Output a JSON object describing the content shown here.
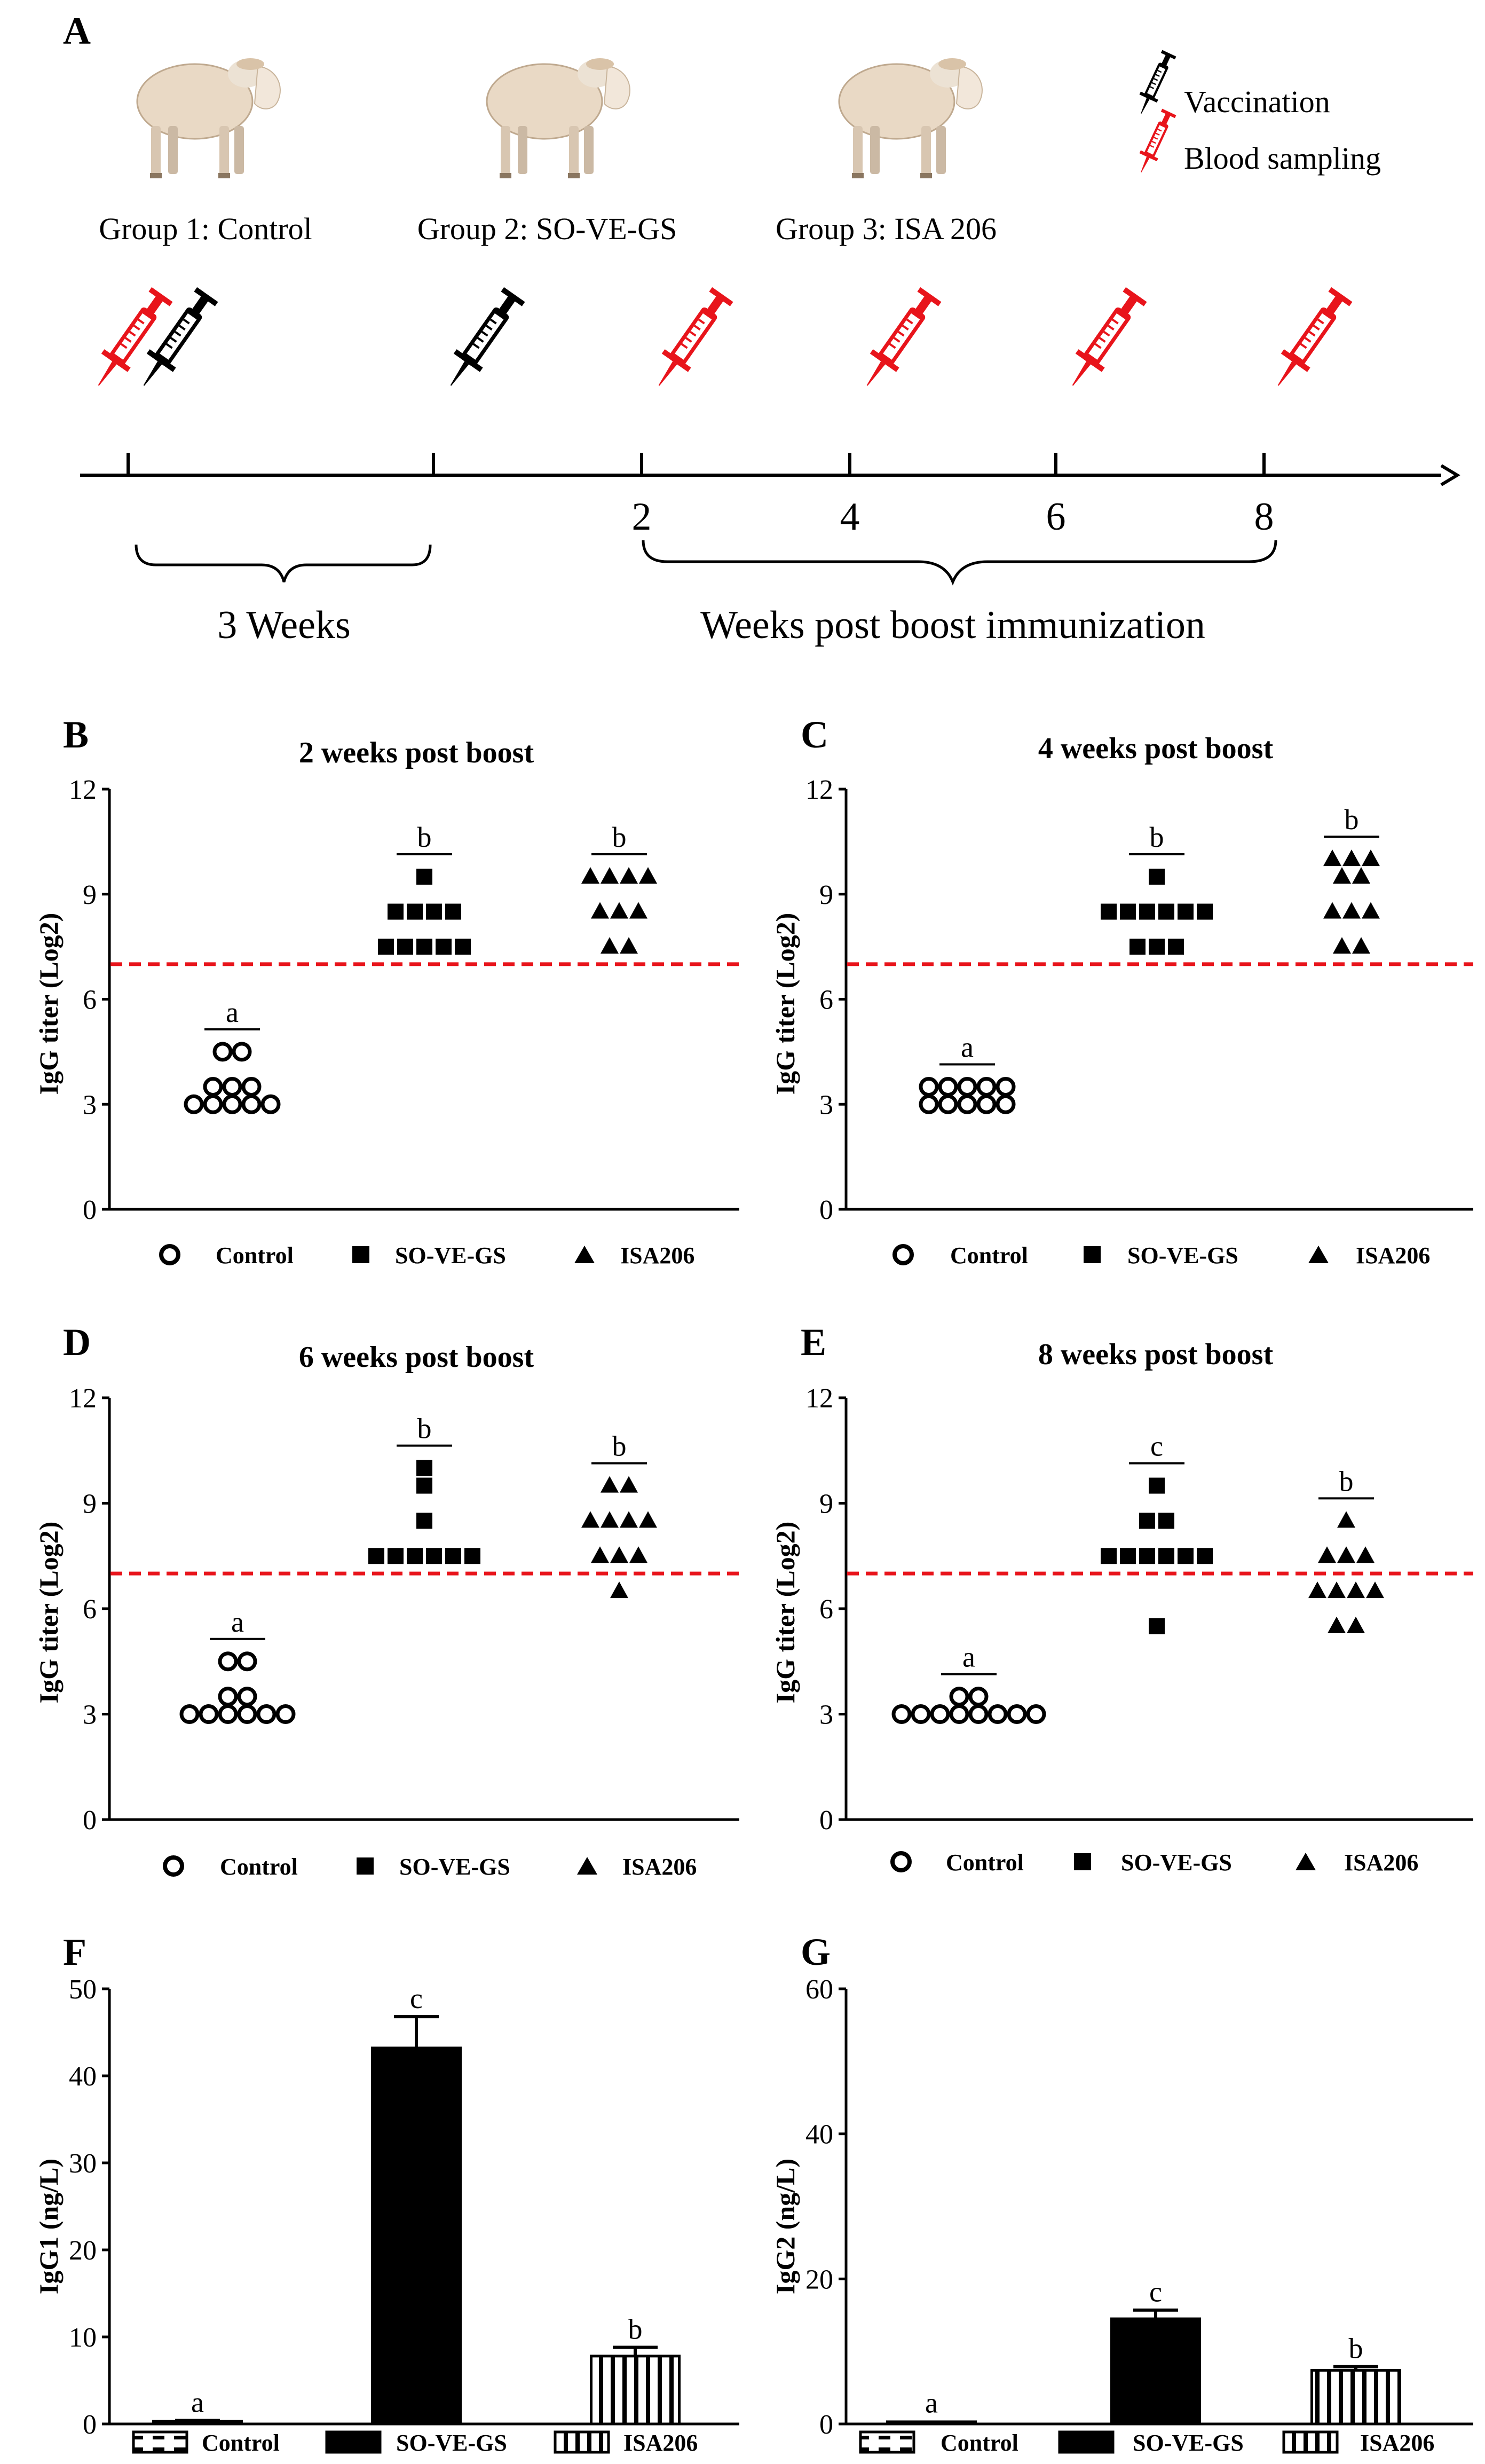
{
  "figure": {
    "panelA": {
      "label": "A",
      "groups": [
        "Group 1: Control",
        "Group 2: SO-VE-GS",
        "Group 3: ISA 206"
      ],
      "legend": {
        "vaccination": "Vaccination",
        "blood_sampling": "Blood sampling"
      },
      "timeline_ticks": [
        "2",
        "4",
        "6",
        "8"
      ],
      "period1": "3 Weeks",
      "period2": "Weeks post boost immunization",
      "colors": {
        "vaccination": "#000000",
        "blood_sampling": "#e8141b",
        "sheep": "#e9d9c5"
      }
    },
    "threshold_color": "#e8141b"
  },
  "chart_data": [
    {
      "panel": "B",
      "type": "scatter",
      "title": "2 weeks post boost",
      "ylabel": "IgG titer (Log2)",
      "ylim": [
        0,
        12
      ],
      "yticks": [
        "0",
        "3",
        "6",
        "9",
        "12"
      ],
      "threshold": 7,
      "legend": [
        "Control",
        "SO-VE-GS",
        "ISA206"
      ],
      "series": [
        {
          "name": "Control",
          "marker": "circle",
          "letter": "a",
          "rows": [
            [
              3,
              5
            ],
            [
              3.5,
              3
            ],
            [
              4.5,
              2
            ]
          ]
        },
        {
          "name": "SO-VE-GS",
          "marker": "square",
          "letter": "b",
          "rows": [
            [
              7.5,
              5
            ],
            [
              8.5,
              4
            ],
            [
              9.5,
              1
            ]
          ]
        },
        {
          "name": "ISA206",
          "marker": "triangle",
          "letter": "b",
          "rows": [
            [
              7.5,
              2
            ],
            [
              8.5,
              3
            ],
            [
              9.5,
              4
            ]
          ]
        }
      ]
    },
    {
      "panel": "C",
      "type": "scatter",
      "title": "4 weeks post boost",
      "ylabel": "IgG titer (Log2)",
      "ylim": [
        0,
        12
      ],
      "yticks": [
        "0",
        "3",
        "6",
        "9",
        "12"
      ],
      "threshold": 7,
      "legend": [
        "Control",
        "SO-VE-GS",
        "ISA206"
      ],
      "series": [
        {
          "name": "Control",
          "marker": "circle",
          "letter": "a",
          "rows": [
            [
              3,
              5
            ],
            [
              3.5,
              5
            ]
          ]
        },
        {
          "name": "SO-VE-GS",
          "marker": "square",
          "letter": "b",
          "rows": [
            [
              7.5,
              3
            ],
            [
              8.5,
              6
            ],
            [
              9.5,
              1
            ]
          ]
        },
        {
          "name": "ISA206",
          "marker": "triangle",
          "letter": "b",
          "rows": [
            [
              7.5,
              2
            ],
            [
              8.5,
              3
            ],
            [
              9.5,
              2
            ],
            [
              10,
              3
            ]
          ]
        }
      ]
    },
    {
      "panel": "D",
      "type": "scatter",
      "title": "6 weeks post boost",
      "ylabel": "IgG titer (Log2)",
      "ylim": [
        0,
        12
      ],
      "yticks": [
        "0",
        "3",
        "6",
        "9",
        "12"
      ],
      "threshold": 7,
      "legend": [
        "Control",
        "SO-VE-GS",
        "ISA206"
      ],
      "series": [
        {
          "name": "Control",
          "marker": "circle",
          "letter": "a",
          "rows": [
            [
              3,
              6
            ],
            [
              3.5,
              2
            ],
            [
              4.5,
              2
            ]
          ]
        },
        {
          "name": "SO-VE-GS",
          "marker": "square",
          "letter": "b",
          "rows": [
            [
              7.5,
              6
            ],
            [
              8.5,
              1
            ],
            [
              9.5,
              1
            ],
            [
              10,
              1
            ]
          ]
        },
        {
          "name": "ISA206",
          "marker": "triangle",
          "letter": "b",
          "rows": [
            [
              6.5,
              1
            ],
            [
              7.5,
              3
            ],
            [
              8.5,
              4
            ],
            [
              9.5,
              2
            ]
          ]
        }
      ]
    },
    {
      "panel": "E",
      "type": "scatter",
      "title": "8 weeks post boost",
      "ylabel": "IgG titer (Log2)",
      "ylim": [
        0,
        12
      ],
      "yticks": [
        "0",
        "3",
        "6",
        "9",
        "12"
      ],
      "threshold": 7,
      "legend": [
        "Control",
        "SO-VE-GS",
        "ISA206"
      ],
      "series": [
        {
          "name": "Control",
          "marker": "circle",
          "letter": "a",
          "rows": [
            [
              3,
              8
            ],
            [
              3.5,
              2
            ]
          ]
        },
        {
          "name": "SO-VE-GS",
          "marker": "square",
          "letter": "c",
          "rows": [
            [
              5.5,
              1
            ],
            [
              7.5,
              6
            ],
            [
              8.5,
              2
            ],
            [
              9.5,
              1
            ]
          ]
        },
        {
          "name": "ISA206",
          "marker": "triangle",
          "letter": "b",
          "rows": [
            [
              5.5,
              2
            ],
            [
              6.5,
              4
            ],
            [
              7.5,
              3
            ],
            [
              8.5,
              1
            ]
          ]
        }
      ]
    },
    {
      "panel": "F",
      "type": "bar",
      "title": "",
      "ylabel": "IgG1 (ng/L)",
      "ylim": [
        0,
        50
      ],
      "yticks": [
        "0",
        "10",
        "20",
        "30",
        "40",
        "50"
      ],
      "categories": [
        "Control",
        "SO-VE-GS",
        "ISA206"
      ],
      "values": [
        0.3,
        43.2,
        7.8
      ],
      "errors": [
        0.1,
        3.6,
        1.0
      ],
      "letters": [
        "a",
        "c",
        "b"
      ],
      "fills": [
        "dashed",
        "solid",
        "vstripes"
      ]
    },
    {
      "panel": "G",
      "type": "bar",
      "title": "",
      "ylabel": "IgG2 (ng/L)",
      "ylim": [
        0,
        60
      ],
      "yticks": [
        "0",
        "20",
        "40",
        "60"
      ],
      "categories": [
        "Control",
        "SO-VE-GS",
        "ISA206"
      ],
      "values": [
        0.3,
        14.5,
        7.4
      ],
      "errors": [
        0.1,
        1.2,
        0.5
      ],
      "letters": [
        "a",
        "c",
        "b"
      ],
      "fills": [
        "dashed",
        "solid",
        "vstripes"
      ]
    }
  ]
}
